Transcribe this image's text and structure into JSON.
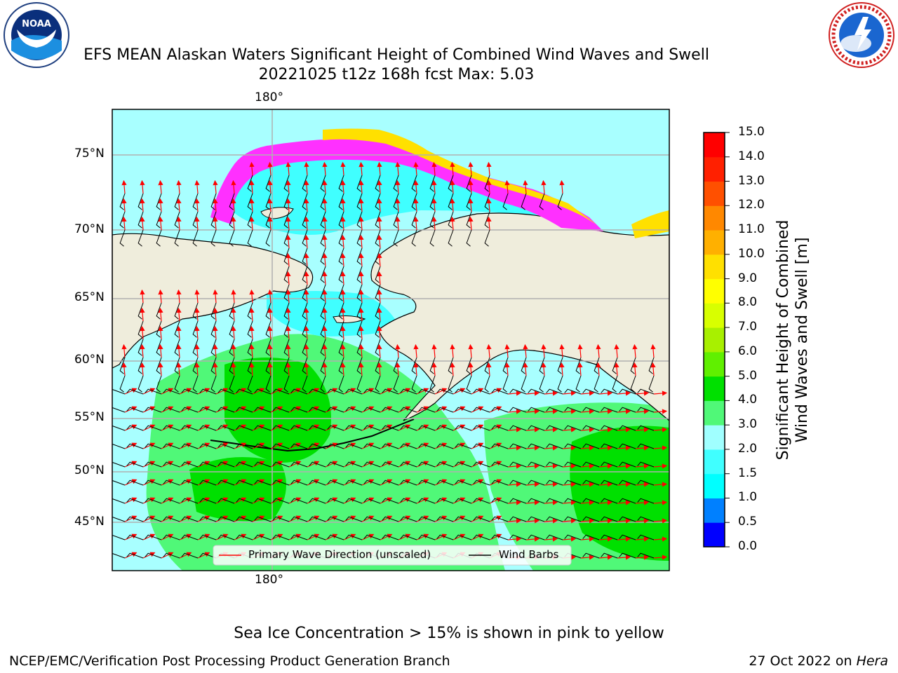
{
  "header": {
    "title_line1": "EFS MEAN Alaskan Waters Significant Height of Combined Wind Waves and Swell",
    "title_line2": "20221025 t12z 168h fcst   Max: 5.03",
    "logo_left": "noaa-logo",
    "logo_right": "national-weather-service-logo"
  },
  "map": {
    "lat_labels": [
      "75°N",
      "70°N",
      "65°N",
      "60°N",
      "55°N",
      "50°N",
      "45°N"
    ],
    "lon_label_top": "180°",
    "lon_label_bottom": "180°",
    "colors": {
      "land": "#efeddc",
      "ice_pink": "#ff30ff",
      "ice_yellow": "#ffe000",
      "arrow": "#ff0000",
      "barb": "#000000"
    },
    "legend": {
      "items": [
        {
          "label": "Primary Wave Direction (unscaled)",
          "color": "#ff0000"
        },
        {
          "label": "Wind Barbs",
          "color": "#000000"
        }
      ],
      "placement": "bottom-center"
    }
  },
  "colorbar": {
    "label_line1": "Significant Height of Combined",
    "label_line2": "Wind Waves and Swell [m]",
    "ticks": [
      "15.0",
      "14.0",
      "13.0",
      "12.0",
      "11.0",
      "10.0",
      "9.0",
      "8.0",
      "7.0",
      "6.0",
      "5.0",
      "4.0",
      "3.0",
      "2.0",
      "1.5",
      "1.0",
      "0.5",
      "0.0"
    ],
    "colors": [
      "#0000ff",
      "#0080ff",
      "#00ffff",
      "#40ffff",
      "#a0ffff",
      "#50f878",
      "#00e000",
      "#60f000",
      "#a8f000",
      "#d8ff00",
      "#ffff00",
      "#ffe000",
      "#ffb000",
      "#ff8800",
      "#ff5000",
      "#ff2000",
      "#ff0000"
    ]
  },
  "footer": {
    "ice_note": "Sea Ice Concentration > 15% is shown in pink to yellow",
    "branch": "NCEP/EMC/Verification Post Processing Product Generation Branch",
    "date": "27 Oct 2022 on",
    "host": "Hera"
  }
}
